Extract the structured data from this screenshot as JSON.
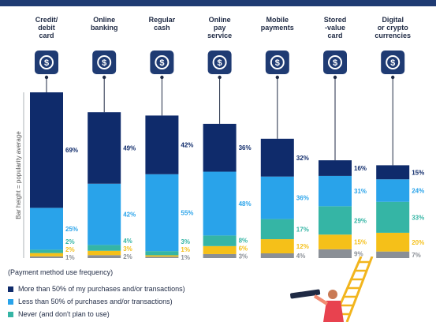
{
  "colors": {
    "more_than_50": "#0f2b6b",
    "less_than_50": "#29a3ea",
    "never": "#35b5a5",
    "unfamiliar": "#f5c019",
    "other": "#8a8f96"
  },
  "icons": [
    "credit-card-icon",
    "bank-icon",
    "cash-icon",
    "mobile-pay-icon",
    "mobile-payment-icon",
    "stored-value-card-icon",
    "crypto-icon"
  ],
  "legend": {
    "title": "(Payment method use frequency)",
    "items": [
      {
        "label": "More than 50% of my purchases and/or transactions)",
        "color": "#0f2b6b"
      },
      {
        "label": "Less than 50% of purchases and/or transactions)",
        "color": "#29a3ea"
      },
      {
        "label": "Never (and don't plan to use)",
        "color": "#35b5a5"
      }
    ]
  },
  "chart_data": {
    "type": "bar",
    "stacked": true,
    "categories": [
      "Credit/ debit card",
      "Online banking",
      "Regular cash",
      "Online pay service",
      "Mobile payments",
      "Stored -value card",
      "Digital or crypto currencies"
    ],
    "category_lines": [
      [
        "Credit/",
        "debit",
        "card"
      ],
      [
        "Online",
        "banking"
      ],
      [
        "Regular",
        "cash"
      ],
      [
        "Online",
        "pay",
        "service"
      ],
      [
        "Mobile",
        "payments"
      ],
      [
        "Stored",
        "-value",
        "card"
      ],
      [
        "Digital",
        "or crypto",
        "currencies"
      ]
    ],
    "ylabel": "Bar height = popularity average",
    "bar_heights": [
      100,
      88,
      86,
      81,
      72,
      59,
      56
    ],
    "series": [
      {
        "name": "More than 50% of my purchases and/or transactions)",
        "values": [
          69,
          49,
          42,
          36,
          32,
          16,
          15
        ]
      },
      {
        "name": "Less than 50% of purchases and/or transactions)",
        "values": [
          25,
          42,
          55,
          48,
          36,
          31,
          24
        ]
      },
      {
        "name": "Never (and don't plan to use)",
        "values": [
          2,
          4,
          3,
          8,
          17,
          29,
          33
        ]
      },
      {
        "values": [
          2,
          3,
          1,
          6,
          12,
          15,
          20
        ]
      },
      {
        "values": [
          1,
          2,
          1,
          3,
          4,
          9,
          7
        ]
      }
    ],
    "value_labels": [
      [
        "69%",
        "25%",
        "2%",
        "2%",
        "1%"
      ],
      [
        "49%",
        "42%",
        "4%",
        "3%",
        "2%"
      ],
      [
        "42%",
        "55%",
        "3%",
        "1%",
        "1%"
      ],
      [
        "36%",
        "48%",
        "8%",
        "6%",
        "3%"
      ],
      [
        "32%",
        "36%",
        "17%",
        "12%",
        "4%"
      ],
      [
        "16%",
        "31%",
        "29%",
        "15%",
        "9%"
      ],
      [
        "15%",
        "24%",
        "33%",
        "20%",
        "7%"
      ]
    ]
  }
}
